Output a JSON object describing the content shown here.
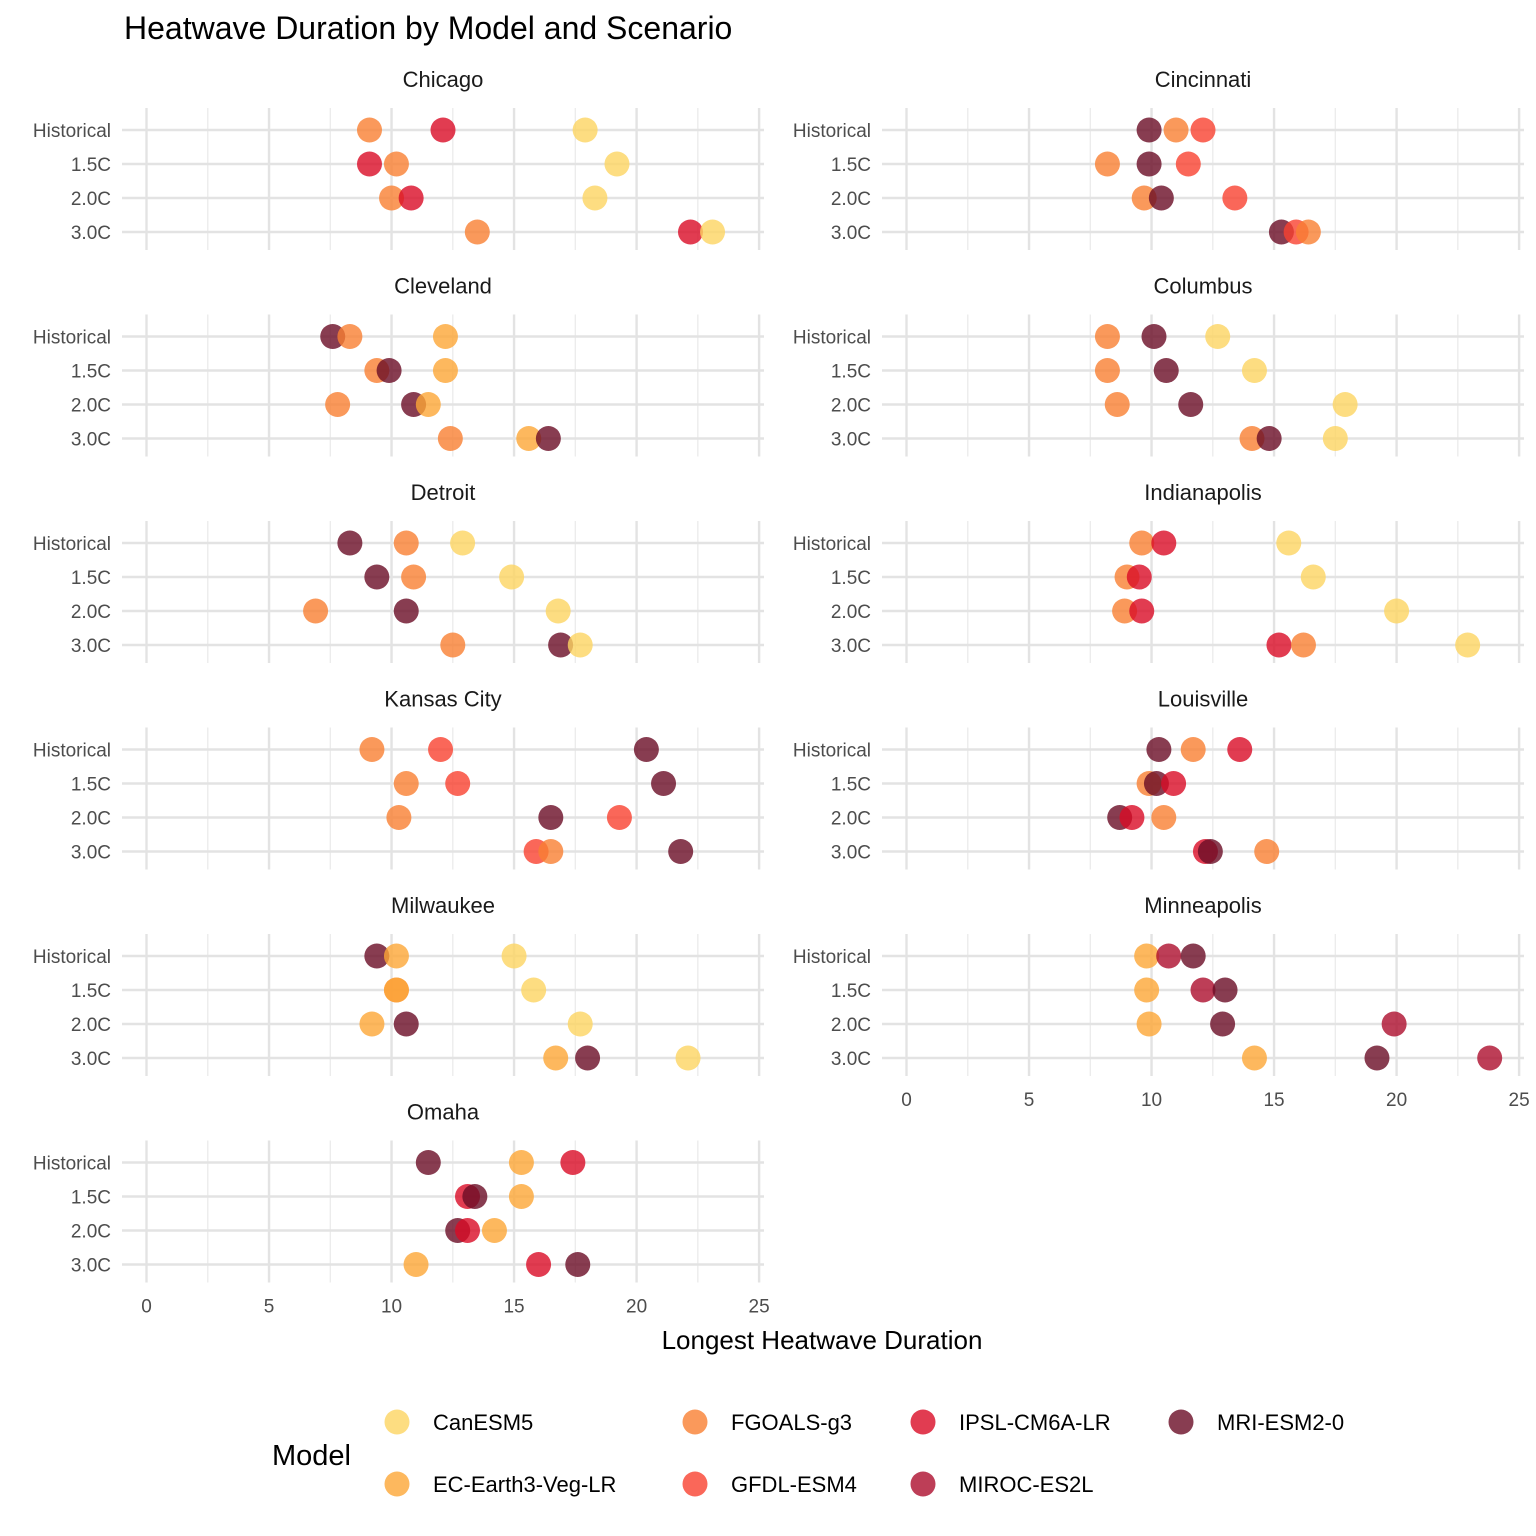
{
  "chart_data": {
    "type": "scatter",
    "title": "Heatwave Duration by Model and Scenario",
    "xlabel": "Longest Heatwave Duration",
    "ylabel": "",
    "xlim": [
      -1,
      25.2
    ],
    "x_ticks": [
      "0",
      "5",
      "10",
      "15",
      "20",
      "25"
    ],
    "scenarios": [
      "Historical",
      "1.5C",
      "2.0C",
      "3.0C"
    ],
    "legend": {
      "title": "Model",
      "position": "bottom",
      "entries": [
        {
          "name": "CanESM5",
          "color": "#FDD462"
        },
        {
          "name": "EC-Earth3-Veg-LR",
          "color": "#FCA636"
        },
        {
          "name": "FGOALS-g3",
          "color": "#F98032"
        },
        {
          "name": "GFDL-ESM4",
          "color": "#F9412F"
        },
        {
          "name": "IPSL-CM6A-LR",
          "color": "#DA0B26"
        },
        {
          "name": "MIROC-ES2L",
          "color": "#AD0E2D"
        },
        {
          "name": "MRI-ESM2-0",
          "color": "#6A0C25"
        }
      ]
    },
    "grid": true,
    "panels": [
      {
        "city": "Chicago",
        "points": [
          {
            "model": "FGOALS-g3",
            "scenario": "Historical",
            "x": 9.1
          },
          {
            "model": "IPSL-CM6A-LR",
            "scenario": "Historical",
            "x": 12.1
          },
          {
            "model": "CanESM5",
            "scenario": "Historical",
            "x": 17.9
          },
          {
            "model": "IPSL-CM6A-LR",
            "scenario": "1.5C",
            "x": 9.1
          },
          {
            "model": "FGOALS-g3",
            "scenario": "1.5C",
            "x": 10.2
          },
          {
            "model": "CanESM5",
            "scenario": "1.5C",
            "x": 19.2
          },
          {
            "model": "FGOALS-g3",
            "scenario": "2.0C",
            "x": 10.0
          },
          {
            "model": "IPSL-CM6A-LR",
            "scenario": "2.0C",
            "x": 10.8
          },
          {
            "model": "CanESM5",
            "scenario": "2.0C",
            "x": 18.3
          },
          {
            "model": "FGOALS-g3",
            "scenario": "3.0C",
            "x": 13.5
          },
          {
            "model": "IPSL-CM6A-LR",
            "scenario": "3.0C",
            "x": 22.2
          },
          {
            "model": "CanESM5",
            "scenario": "3.0C",
            "x": 23.1
          }
        ]
      },
      {
        "city": "Cincinnati",
        "points": [
          {
            "model": "MRI-ESM2-0",
            "scenario": "Historical",
            "x": 9.9
          },
          {
            "model": "FGOALS-g3",
            "scenario": "Historical",
            "x": 11.0
          },
          {
            "model": "GFDL-ESM4",
            "scenario": "Historical",
            "x": 12.1
          },
          {
            "model": "FGOALS-g3",
            "scenario": "1.5C",
            "x": 8.2
          },
          {
            "model": "MRI-ESM2-0",
            "scenario": "1.5C",
            "x": 9.9
          },
          {
            "model": "GFDL-ESM4",
            "scenario": "1.5C",
            "x": 11.5
          },
          {
            "model": "FGOALS-g3",
            "scenario": "2.0C",
            "x": 9.7
          },
          {
            "model": "MRI-ESM2-0",
            "scenario": "2.0C",
            "x": 10.4
          },
          {
            "model": "GFDL-ESM4",
            "scenario": "2.0C",
            "x": 13.4
          },
          {
            "model": "MRI-ESM2-0",
            "scenario": "3.0C",
            "x": 15.3
          },
          {
            "model": "GFDL-ESM4",
            "scenario": "3.0C",
            "x": 15.9
          },
          {
            "model": "FGOALS-g3",
            "scenario": "3.0C",
            "x": 16.4
          }
        ]
      },
      {
        "city": "Cleveland",
        "points": [
          {
            "model": "MRI-ESM2-0",
            "scenario": "Historical",
            "x": 7.6
          },
          {
            "model": "FGOALS-g3",
            "scenario": "Historical",
            "x": 8.3
          },
          {
            "model": "EC-Earth3-Veg-LR",
            "scenario": "Historical",
            "x": 12.2
          },
          {
            "model": "FGOALS-g3",
            "scenario": "1.5C",
            "x": 9.4
          },
          {
            "model": "MRI-ESM2-0",
            "scenario": "1.5C",
            "x": 9.9
          },
          {
            "model": "EC-Earth3-Veg-LR",
            "scenario": "1.5C",
            "x": 12.2
          },
          {
            "model": "FGOALS-g3",
            "scenario": "2.0C",
            "x": 7.8
          },
          {
            "model": "MRI-ESM2-0",
            "scenario": "2.0C",
            "x": 10.9
          },
          {
            "model": "EC-Earth3-Veg-LR",
            "scenario": "2.0C",
            "x": 11.5
          },
          {
            "model": "FGOALS-g3",
            "scenario": "3.0C",
            "x": 12.4
          },
          {
            "model": "EC-Earth3-Veg-LR",
            "scenario": "3.0C",
            "x": 15.6
          },
          {
            "model": "MRI-ESM2-0",
            "scenario": "3.0C",
            "x": 16.4
          }
        ]
      },
      {
        "city": "Columbus",
        "points": [
          {
            "model": "FGOALS-g3",
            "scenario": "Historical",
            "x": 8.2
          },
          {
            "model": "MRI-ESM2-0",
            "scenario": "Historical",
            "x": 10.1
          },
          {
            "model": "CanESM5",
            "scenario": "Historical",
            "x": 12.7
          },
          {
            "model": "FGOALS-g3",
            "scenario": "1.5C",
            "x": 8.2
          },
          {
            "model": "MRI-ESM2-0",
            "scenario": "1.5C",
            "x": 10.6
          },
          {
            "model": "CanESM5",
            "scenario": "1.5C",
            "x": 14.2
          },
          {
            "model": "FGOALS-g3",
            "scenario": "2.0C",
            "x": 8.6
          },
          {
            "model": "MRI-ESM2-0",
            "scenario": "2.0C",
            "x": 11.6
          },
          {
            "model": "CanESM5",
            "scenario": "2.0C",
            "x": 17.9
          },
          {
            "model": "FGOALS-g3",
            "scenario": "3.0C",
            "x": 14.1
          },
          {
            "model": "MRI-ESM2-0",
            "scenario": "3.0C",
            "x": 14.8
          },
          {
            "model": "CanESM5",
            "scenario": "3.0C",
            "x": 17.5
          }
        ]
      },
      {
        "city": "Detroit",
        "points": [
          {
            "model": "MRI-ESM2-0",
            "scenario": "Historical",
            "x": 8.3
          },
          {
            "model": "FGOALS-g3",
            "scenario": "Historical",
            "x": 10.6
          },
          {
            "model": "CanESM5",
            "scenario": "Historical",
            "x": 12.9
          },
          {
            "model": "MRI-ESM2-0",
            "scenario": "1.5C",
            "x": 9.4
          },
          {
            "model": "FGOALS-g3",
            "scenario": "1.5C",
            "x": 10.9
          },
          {
            "model": "CanESM5",
            "scenario": "1.5C",
            "x": 14.9
          },
          {
            "model": "FGOALS-g3",
            "scenario": "2.0C",
            "x": 6.9
          },
          {
            "model": "MRI-ESM2-0",
            "scenario": "2.0C",
            "x": 10.6
          },
          {
            "model": "CanESM5",
            "scenario": "2.0C",
            "x": 16.8
          },
          {
            "model": "FGOALS-g3",
            "scenario": "3.0C",
            "x": 12.5
          },
          {
            "model": "MRI-ESM2-0",
            "scenario": "3.0C",
            "x": 16.9
          },
          {
            "model": "CanESM5",
            "scenario": "3.0C",
            "x": 17.7
          }
        ]
      },
      {
        "city": "Indianapolis",
        "points": [
          {
            "model": "FGOALS-g3",
            "scenario": "Historical",
            "x": 9.6
          },
          {
            "model": "IPSL-CM6A-LR",
            "scenario": "Historical",
            "x": 10.5
          },
          {
            "model": "CanESM5",
            "scenario": "Historical",
            "x": 15.6
          },
          {
            "model": "FGOALS-g3",
            "scenario": "1.5C",
            "x": 9.0
          },
          {
            "model": "IPSL-CM6A-LR",
            "scenario": "1.5C",
            "x": 9.5
          },
          {
            "model": "CanESM5",
            "scenario": "1.5C",
            "x": 16.6
          },
          {
            "model": "FGOALS-g3",
            "scenario": "2.0C",
            "x": 8.9
          },
          {
            "model": "IPSL-CM6A-LR",
            "scenario": "2.0C",
            "x": 9.6
          },
          {
            "model": "CanESM5",
            "scenario": "2.0C",
            "x": 20.0
          },
          {
            "model": "IPSL-CM6A-LR",
            "scenario": "3.0C",
            "x": 15.2
          },
          {
            "model": "FGOALS-g3",
            "scenario": "3.0C",
            "x": 16.2
          },
          {
            "model": "CanESM5",
            "scenario": "3.0C",
            "x": 22.9
          }
        ]
      },
      {
        "city": "Kansas City",
        "points": [
          {
            "model": "FGOALS-g3",
            "scenario": "Historical",
            "x": 9.2
          },
          {
            "model": "GFDL-ESM4",
            "scenario": "Historical",
            "x": 12.0
          },
          {
            "model": "MRI-ESM2-0",
            "scenario": "Historical",
            "x": 20.4
          },
          {
            "model": "FGOALS-g3",
            "scenario": "1.5C",
            "x": 10.6
          },
          {
            "model": "GFDL-ESM4",
            "scenario": "1.5C",
            "x": 12.7
          },
          {
            "model": "MRI-ESM2-0",
            "scenario": "1.5C",
            "x": 21.1
          },
          {
            "model": "FGOALS-g3",
            "scenario": "2.0C",
            "x": 10.3
          },
          {
            "model": "MRI-ESM2-0",
            "scenario": "2.0C",
            "x": 16.5
          },
          {
            "model": "GFDL-ESM4",
            "scenario": "2.0C",
            "x": 19.3
          },
          {
            "model": "GFDL-ESM4",
            "scenario": "3.0C",
            "x": 15.9
          },
          {
            "model": "FGOALS-g3",
            "scenario": "3.0C",
            "x": 16.5
          },
          {
            "model": "MRI-ESM2-0",
            "scenario": "3.0C",
            "x": 21.8
          }
        ]
      },
      {
        "city": "Louisville",
        "points": [
          {
            "model": "MRI-ESM2-0",
            "scenario": "Historical",
            "x": 10.3
          },
          {
            "model": "FGOALS-g3",
            "scenario": "Historical",
            "x": 11.7
          },
          {
            "model": "IPSL-CM6A-LR",
            "scenario": "Historical",
            "x": 13.6
          },
          {
            "model": "FGOALS-g3",
            "scenario": "1.5C",
            "x": 9.9
          },
          {
            "model": "MRI-ESM2-0",
            "scenario": "1.5C",
            "x": 10.2
          },
          {
            "model": "IPSL-CM6A-LR",
            "scenario": "1.5C",
            "x": 10.9
          },
          {
            "model": "MRI-ESM2-0",
            "scenario": "2.0C",
            "x": 8.7
          },
          {
            "model": "IPSL-CM6A-LR",
            "scenario": "2.0C",
            "x": 9.2
          },
          {
            "model": "FGOALS-g3",
            "scenario": "2.0C",
            "x": 10.5
          },
          {
            "model": "IPSL-CM6A-LR",
            "scenario": "3.0C",
            "x": 12.2
          },
          {
            "model": "MRI-ESM2-0",
            "scenario": "3.0C",
            "x": 12.4
          },
          {
            "model": "FGOALS-g3",
            "scenario": "3.0C",
            "x": 14.7
          }
        ]
      },
      {
        "city": "Milwaukee",
        "points": [
          {
            "model": "MRI-ESM2-0",
            "scenario": "Historical",
            "x": 9.4
          },
          {
            "model": "EC-Earth3-Veg-LR",
            "scenario": "Historical",
            "x": 10.2
          },
          {
            "model": "CanESM5",
            "scenario": "Historical",
            "x": 15.0
          },
          {
            "model": "FGOALS-g3",
            "scenario": "1.5C",
            "x": 10.2
          },
          {
            "model": "EC-Earth3-Veg-LR",
            "scenario": "1.5C",
            "x": 10.2
          },
          {
            "model": "CanESM5",
            "scenario": "1.5C",
            "x": 15.8
          },
          {
            "model": "EC-Earth3-Veg-LR",
            "scenario": "2.0C",
            "x": 9.2
          },
          {
            "model": "MRI-ESM2-0",
            "scenario": "2.0C",
            "x": 10.6
          },
          {
            "model": "CanESM5",
            "scenario": "2.0C",
            "x": 17.7
          },
          {
            "model": "EC-Earth3-Veg-LR",
            "scenario": "3.0C",
            "x": 16.7
          },
          {
            "model": "MRI-ESM2-0",
            "scenario": "3.0C",
            "x": 18.0
          },
          {
            "model": "CanESM5",
            "scenario": "3.0C",
            "x": 22.1
          }
        ]
      },
      {
        "city": "Minneapolis",
        "points": [
          {
            "model": "EC-Earth3-Veg-LR",
            "scenario": "Historical",
            "x": 9.8
          },
          {
            "model": "MIROC-ES2L",
            "scenario": "Historical",
            "x": 10.7
          },
          {
            "model": "MRI-ESM2-0",
            "scenario": "Historical",
            "x": 11.7
          },
          {
            "model": "EC-Earth3-Veg-LR",
            "scenario": "1.5C",
            "x": 9.8
          },
          {
            "model": "MIROC-ES2L",
            "scenario": "1.5C",
            "x": 12.1
          },
          {
            "model": "MRI-ESM2-0",
            "scenario": "1.5C",
            "x": 13.0
          },
          {
            "model": "EC-Earth3-Veg-LR",
            "scenario": "2.0C",
            "x": 9.9
          },
          {
            "model": "MRI-ESM2-0",
            "scenario": "2.0C",
            "x": 12.9
          },
          {
            "model": "MIROC-ES2L",
            "scenario": "2.0C",
            "x": 19.9
          },
          {
            "model": "EC-Earth3-Veg-LR",
            "scenario": "3.0C",
            "x": 14.2
          },
          {
            "model": "MRI-ESM2-0",
            "scenario": "3.0C",
            "x": 19.2
          },
          {
            "model": "MIROC-ES2L",
            "scenario": "3.0C",
            "x": 23.8
          }
        ]
      },
      {
        "city": "Omaha",
        "points": [
          {
            "model": "MRI-ESM2-0",
            "scenario": "Historical",
            "x": 11.5
          },
          {
            "model": "EC-Earth3-Veg-LR",
            "scenario": "Historical",
            "x": 15.3
          },
          {
            "model": "IPSL-CM6A-LR",
            "scenario": "Historical",
            "x": 17.4
          },
          {
            "model": "IPSL-CM6A-LR",
            "scenario": "1.5C",
            "x": 13.1
          },
          {
            "model": "MRI-ESM2-0",
            "scenario": "1.5C",
            "x": 13.4
          },
          {
            "model": "EC-Earth3-Veg-LR",
            "scenario": "1.5C",
            "x": 15.3
          },
          {
            "model": "MRI-ESM2-0",
            "scenario": "2.0C",
            "x": 12.7
          },
          {
            "model": "IPSL-CM6A-LR",
            "scenario": "2.0C",
            "x": 13.1
          },
          {
            "model": "EC-Earth3-Veg-LR",
            "scenario": "2.0C",
            "x": 14.2
          },
          {
            "model": "EC-Earth3-Veg-LR",
            "scenario": "3.0C",
            "x": 11.0
          },
          {
            "model": "IPSL-CM6A-LR",
            "scenario": "3.0C",
            "x": 16.0
          },
          {
            "model": "MRI-ESM2-0",
            "scenario": "3.0C",
            "x": 17.6
          }
        ]
      }
    ]
  }
}
